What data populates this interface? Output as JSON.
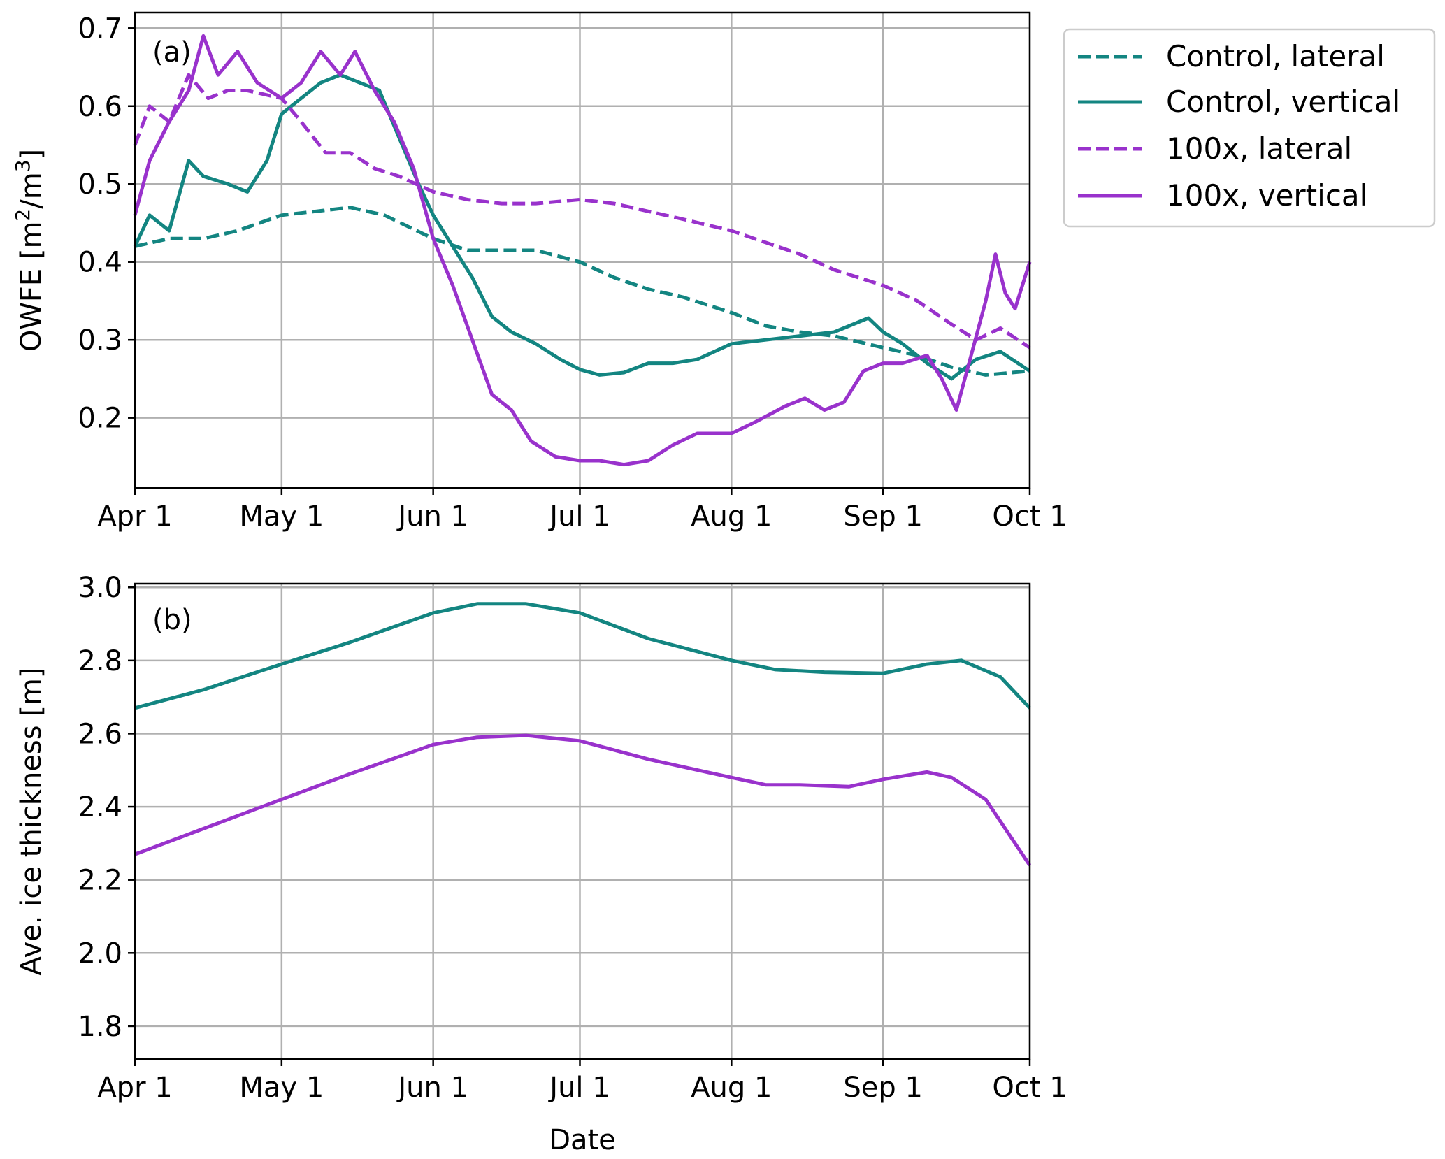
{
  "x_ticks": [
    "Apr 1",
    "May 1",
    "Jun 1",
    "Jul 1",
    "Aug 1",
    "Sep 1",
    "Oct 1"
  ],
  "x_label": "Date",
  "colors": {
    "control": "#138581",
    "hundred": "#9932cc"
  },
  "chart_data": [
    {
      "panel": "(a)",
      "type": "line",
      "ylabel_main": "OWFE [m",
      "ylabel_sup1": "2",
      "ylabel_mid": "/m",
      "ylabel_sup2": "3",
      "ylabel_end": "]",
      "xlim": [
        "Apr 1",
        "Oct 1"
      ],
      "ylim": [
        0.11,
        0.72
      ],
      "y_ticks": [
        0.2,
        0.3,
        0.4,
        0.5,
        0.6,
        0.7
      ],
      "y_tick_labels": [
        "0.2",
        "0.3",
        "0.4",
        "0.5",
        "0.6",
        "0.7"
      ],
      "grid": true,
      "legend_position": "outside right, top",
      "series": [
        {
          "name": "Control, lateral",
          "color": "#138581",
          "dashed": true,
          "points": [
            [
              "Apr 1",
              0.42
            ],
            [
              "Apr 8",
              0.43
            ],
            [
              "Apr 15",
              0.43
            ],
            [
              "Apr 22",
              0.44
            ],
            [
              "May 1",
              0.46
            ],
            [
              "May 8",
              0.465
            ],
            [
              "May 15",
              0.47
            ],
            [
              "May 22",
              0.46
            ],
            [
              "Jun 1",
              0.43
            ],
            [
              "Jun 8",
              0.415
            ],
            [
              "Jun 15",
              0.415
            ],
            [
              "Jun 22",
              0.415
            ],
            [
              "Jul 1",
              0.4
            ],
            [
              "Jul 8",
              0.38
            ],
            [
              "Jul 15",
              0.365
            ],
            [
              "Jul 22",
              0.355
            ],
            [
              "Aug 1",
              0.335
            ],
            [
              "Aug 8",
              0.318
            ],
            [
              "Aug 15",
              0.31
            ],
            [
              "Aug 22",
              0.305
            ],
            [
              "Sep 1",
              0.29
            ],
            [
              "Sep 8",
              0.28
            ],
            [
              "Sep 15",
              0.265
            ],
            [
              "Sep 22",
              0.255
            ],
            [
              "Oct 1",
              0.26
            ]
          ]
        },
        {
          "name": "Control, vertical",
          "color": "#138581",
          "dashed": false,
          "points": [
            [
              "Apr 1",
              0.42
            ],
            [
              "Apr 4",
              0.46
            ],
            [
              "Apr 8",
              0.44
            ],
            [
              "Apr 12",
              0.53
            ],
            [
              "Apr 15",
              0.51
            ],
            [
              "Apr 20",
              0.5
            ],
            [
              "Apr 24",
              0.49
            ],
            [
              "Apr 28",
              0.53
            ],
            [
              "May 1",
              0.59
            ],
            [
              "May 5",
              0.61
            ],
            [
              "May 9",
              0.63
            ],
            [
              "May 13",
              0.64
            ],
            [
              "May 17",
              0.63
            ],
            [
              "May 21",
              0.62
            ],
            [
              "May 25",
              0.56
            ],
            [
              "May 29",
              0.5
            ],
            [
              "Jun 1",
              0.46
            ],
            [
              "Jun 5",
              0.42
            ],
            [
              "Jun 9",
              0.38
            ],
            [
              "Jun 13",
              0.33
            ],
            [
              "Jun 17",
              0.31
            ],
            [
              "Jun 22",
              0.295
            ],
            [
              "Jun 27",
              0.275
            ],
            [
              "Jul 1",
              0.262
            ],
            [
              "Jul 5",
              0.255
            ],
            [
              "Jul 10",
              0.258
            ],
            [
              "Jul 15",
              0.27
            ],
            [
              "Jul 20",
              0.27
            ],
            [
              "Jul 25",
              0.275
            ],
            [
              "Aug 1",
              0.295
            ],
            [
              "Aug 8",
              0.3
            ],
            [
              "Aug 15",
              0.305
            ],
            [
              "Aug 22",
              0.31
            ],
            [
              "Aug 29",
              0.328
            ],
            [
              "Sep 1",
              0.31
            ],
            [
              "Sep 5",
              0.295
            ],
            [
              "Sep 10",
              0.27
            ],
            [
              "Sep 15",
              0.25
            ],
            [
              "Sep 20",
              0.275
            ],
            [
              "Sep 25",
              0.285
            ],
            [
              "Oct 1",
              0.26
            ]
          ]
        },
        {
          "name": "100x, lateral",
          "color": "#9932cc",
          "dashed": true,
          "points": [
            [
              "Apr 1",
              0.55
            ],
            [
              "Apr 4",
              0.6
            ],
            [
              "Apr 8",
              0.58
            ],
            [
              "Apr 12",
              0.64
            ],
            [
              "Apr 16",
              0.61
            ],
            [
              "Apr 20",
              0.62
            ],
            [
              "Apr 24",
              0.62
            ],
            [
              "May 1",
              0.61
            ],
            [
              "May 5",
              0.58
            ],
            [
              "May 10",
              0.54
            ],
            [
              "May 15",
              0.54
            ],
            [
              "May 20",
              0.52
            ],
            [
              "May 25",
              0.51
            ],
            [
              "Jun 1",
              0.49
            ],
            [
              "Jun 8",
              0.48
            ],
            [
              "Jun 15",
              0.475
            ],
            [
              "Jun 22",
              0.475
            ],
            [
              "Jul 1",
              0.48
            ],
            [
              "Jul 8",
              0.475
            ],
            [
              "Jul 15",
              0.465
            ],
            [
              "Jul 22",
              0.455
            ],
            [
              "Aug 1",
              0.44
            ],
            [
              "Aug 8",
              0.425
            ],
            [
              "Aug 15",
              0.41
            ],
            [
              "Aug 22",
              0.39
            ],
            [
              "Sep 1",
              0.37
            ],
            [
              "Sep 8",
              0.35
            ],
            [
              "Sep 15",
              0.32
            ],
            [
              "Sep 20",
              0.3
            ],
            [
              "Sep 25",
              0.315
            ],
            [
              "Oct 1",
              0.29
            ]
          ]
        },
        {
          "name": "100x, vertical",
          "color": "#9932cc",
          "dashed": false,
          "points": [
            [
              "Apr 1",
              0.46
            ],
            [
              "Apr 4",
              0.53
            ],
            [
              "Apr 8",
              0.58
            ],
            [
              "Apr 12",
              0.62
            ],
            [
              "Apr 15",
              0.69
            ],
            [
              "Apr 18",
              0.64
            ],
            [
              "Apr 22",
              0.67
            ],
            [
              "Apr 26",
              0.63
            ],
            [
              "May 1",
              0.61
            ],
            [
              "May 5",
              0.63
            ],
            [
              "May 9",
              0.67
            ],
            [
              "May 13",
              0.64
            ],
            [
              "May 16",
              0.67
            ],
            [
              "May 20",
              0.62
            ],
            [
              "May 24",
              0.58
            ],
            [
              "May 28",
              0.52
            ],
            [
              "Jun 1",
              0.43
            ],
            [
              "Jun 5",
              0.37
            ],
            [
              "Jun 9",
              0.3
            ],
            [
              "Jun 13",
              0.23
            ],
            [
              "Jun 17",
              0.21
            ],
            [
              "Jun 21",
              0.17
            ],
            [
              "Jun 26",
              0.15
            ],
            [
              "Jul 1",
              0.145
            ],
            [
              "Jul 5",
              0.145
            ],
            [
              "Jul 10",
              0.14
            ],
            [
              "Jul 15",
              0.145
            ],
            [
              "Jul 20",
              0.165
            ],
            [
              "Jul 25",
              0.18
            ],
            [
              "Aug 1",
              0.18
            ],
            [
              "Aug 6",
              0.195
            ],
            [
              "Aug 12",
              0.215
            ],
            [
              "Aug 16",
              0.225
            ],
            [
              "Aug 20",
              0.21
            ],
            [
              "Aug 24",
              0.22
            ],
            [
              "Aug 28",
              0.26
            ],
            [
              "Sep 1",
              0.27
            ],
            [
              "Sep 5",
              0.27
            ],
            [
              "Sep 10",
              0.28
            ],
            [
              "Sep 13",
              0.25
            ],
            [
              "Sep 16",
              0.21
            ],
            [
              "Sep 19",
              0.28
            ],
            [
              "Sep 22",
              0.35
            ],
            [
              "Sep 24",
              0.41
            ],
            [
              "Sep 26",
              0.36
            ],
            [
              "Sep 28",
              0.34
            ],
            [
              "Oct 1",
              0.4
            ]
          ]
        }
      ]
    },
    {
      "panel": "(b)",
      "type": "line",
      "ylabel": "Ave. ice thickness [m]",
      "xlim": [
        "Apr 1",
        "Oct 1"
      ],
      "ylim": [
        1.71,
        3.01
      ],
      "y_ticks": [
        1.8,
        2.0,
        2.2,
        2.4,
        2.6,
        2.8,
        3.0
      ],
      "y_tick_labels": [
        "1.8",
        "2.0",
        "2.2",
        "2.4",
        "2.6",
        "2.8",
        "3.0"
      ],
      "grid": true,
      "series": [
        {
          "color": "#138581",
          "dashed": false,
          "points": [
            [
              "Apr 1",
              2.67
            ],
            [
              "Apr 15",
              2.72
            ],
            [
              "May 1",
              2.79
            ],
            [
              "May 15",
              2.85
            ],
            [
              "Jun 1",
              2.93
            ],
            [
              "Jun 10",
              2.955
            ],
            [
              "Jun 20",
              2.955
            ],
            [
              "Jul 1",
              2.93
            ],
            [
              "Jul 15",
              2.86
            ],
            [
              "Aug 1",
              2.8
            ],
            [
              "Aug 10",
              2.775
            ],
            [
              "Aug 20",
              2.768
            ],
            [
              "Sep 1",
              2.765
            ],
            [
              "Sep 10",
              2.79
            ],
            [
              "Sep 17",
              2.8
            ],
            [
              "Sep 25",
              2.755
            ],
            [
              "Oct 1",
              2.67
            ]
          ]
        },
        {
          "color": "#9932cc",
          "dashed": false,
          "points": [
            [
              "Apr 1",
              2.27
            ],
            [
              "Apr 15",
              2.34
            ],
            [
              "May 1",
              2.42
            ],
            [
              "May 15",
              2.49
            ],
            [
              "Jun 1",
              2.57
            ],
            [
              "Jun 10",
              2.59
            ],
            [
              "Jun 20",
              2.595
            ],
            [
              "Jul 1",
              2.58
            ],
            [
              "Jul 15",
              2.53
            ],
            [
              "Aug 1",
              2.48
            ],
            [
              "Aug 8",
              2.46
            ],
            [
              "Aug 15",
              2.46
            ],
            [
              "Aug 25",
              2.455
            ],
            [
              "Sep 1",
              2.475
            ],
            [
              "Sep 10",
              2.495
            ],
            [
              "Sep 15",
              2.48
            ],
            [
              "Sep 22",
              2.42
            ],
            [
              "Oct 1",
              2.24
            ]
          ]
        }
      ]
    }
  ]
}
